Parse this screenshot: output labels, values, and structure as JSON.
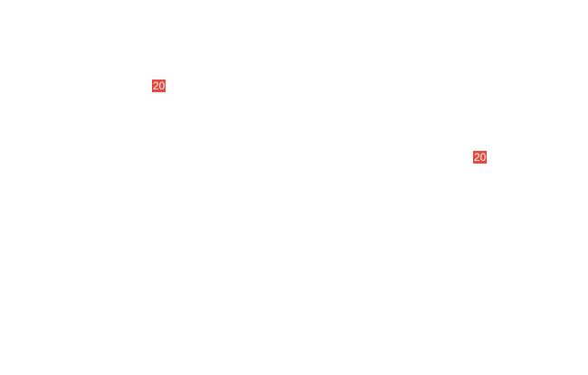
{
  "badge_color": "#e8453c",
  "badges": [
    {
      "label": "20"
    },
    {
      "label": "20"
    }
  ]
}
